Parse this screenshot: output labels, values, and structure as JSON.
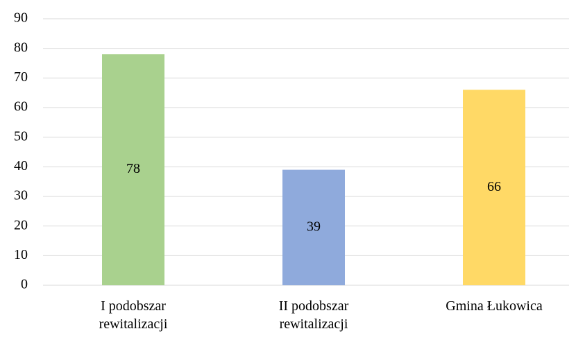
{
  "chart_data": {
    "type": "bar",
    "categories": [
      "I podobszar rewitalizacji",
      "II podobszar rewitalizacji",
      "Gmina Łukowica"
    ],
    "values": [
      78,
      39,
      66
    ],
    "colors": [
      "#a9d18e",
      "#8faadc",
      "#ffd966"
    ],
    "ylim": [
      0,
      90
    ],
    "yticks": [
      0,
      10,
      20,
      30,
      40,
      50,
      60,
      70,
      80,
      90
    ],
    "grid": true
  }
}
